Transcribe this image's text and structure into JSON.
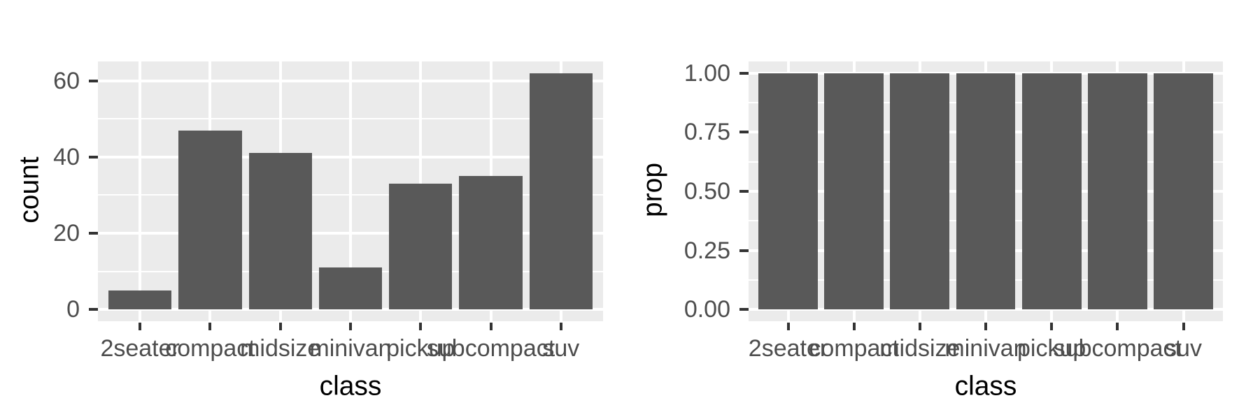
{
  "figure": {
    "background": "#FFFFFF",
    "panel_background": "#EBEBEB",
    "grid_color": "#FFFFFF",
    "bar_color": "#595959",
    "tick_color": "#333333",
    "tick_label_color": "#4D4D4D",
    "axis_title_color": "#000000"
  },
  "chart_data": [
    {
      "type": "bar",
      "title": "",
      "xlabel": "class",
      "ylabel": "count",
      "categories": [
        "2seater",
        "compact",
        "midsize",
        "minivan",
        "pickup",
        "subcompact",
        "suv"
      ],
      "values": [
        5,
        47,
        41,
        11,
        33,
        35,
        62
      ],
      "ylim": [
        0,
        62
      ],
      "yticks": [
        0,
        20,
        40,
        60
      ],
      "ytick_labels": [
        "0",
        "20",
        "40",
        "60"
      ],
      "yminor": [
        10,
        30,
        50
      ],
      "grid": "on",
      "legend": "none",
      "bar_width_fraction": 0.9,
      "scale_expansion_mult": 0.05
    },
    {
      "type": "bar",
      "title": "",
      "xlabel": "class",
      "ylabel": "prop",
      "categories": [
        "2seater",
        "compact",
        "midsize",
        "minivan",
        "pickup",
        "subcompact",
        "suv"
      ],
      "values": [
        1.0,
        1.0,
        1.0,
        1.0,
        1.0,
        1.0,
        1.0
      ],
      "ylim": [
        0,
        1.0
      ],
      "yticks": [
        0,
        0.25,
        0.5,
        0.75,
        1.0
      ],
      "ytick_labels": [
        "0.00",
        "0.25",
        "0.50",
        "0.75",
        "1.00"
      ],
      "yminor": [
        0.125,
        0.375,
        0.625,
        0.875
      ],
      "grid": "on",
      "legend": "none",
      "bar_width_fraction": 0.9,
      "scale_expansion_mult": 0.05
    }
  ]
}
